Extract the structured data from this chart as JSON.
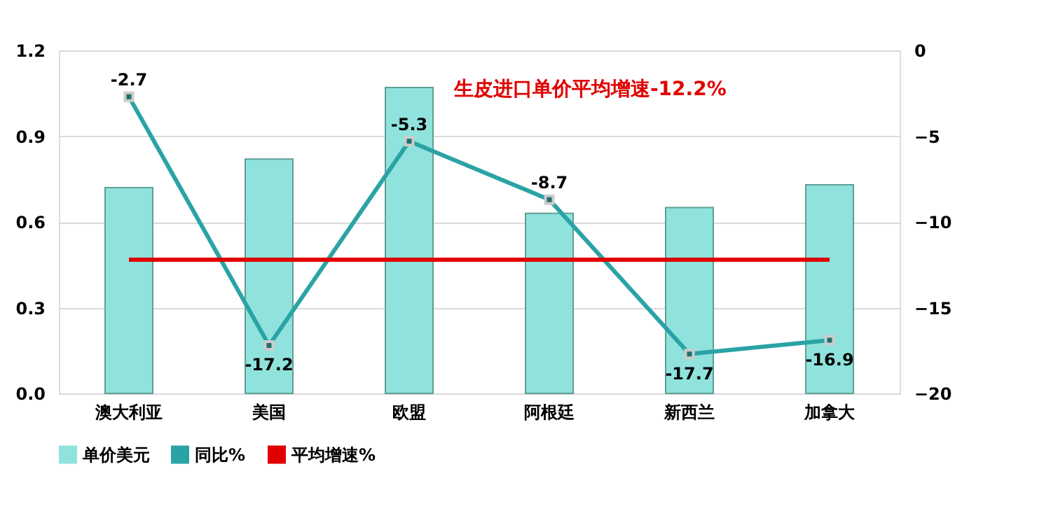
{
  "chart_data": {
    "type": "bar",
    "categories": [
      "澳大利亚",
      "美国",
      "欧盟",
      "阿根廷",
      "新西兰",
      "加拿大"
    ],
    "series": [
      {
        "name": "单价美元",
        "color": "#8fe3dc",
        "values": [
          0.72,
          0.82,
          1.07,
          0.63,
          0.65,
          0.73
        ]
      },
      {
        "name": "同比%",
        "type": "line",
        "axis": "y2",
        "color": "#2aa3a6",
        "marker": "square",
        "values": [
          -2.7,
          -17.2,
          -5.3,
          -8.7,
          -17.7,
          -16.9
        ],
        "value_labels": [
          "-2.7",
          "-17.2",
          "-5.3",
          "-8.7",
          "-17.7",
          "-16.9"
        ]
      },
      {
        "name": "平均增速%",
        "type": "line",
        "axis": "y2",
        "color": "#e00000",
        "values": [
          -12.2,
          -12.2,
          -12.2,
          -12.2,
          -12.2,
          -12.2
        ]
      }
    ],
    "ylim": [
      0,
      1.2
    ],
    "yticks": [
      {
        "value": 0,
        "label": "0.0"
      },
      0.3,
      0.6,
      0.9,
      1.2
    ],
    "y2lim": [
      -20,
      0
    ],
    "y2ticks": [
      -20,
      -15,
      -10,
      -5,
      0
    ],
    "annotations": [
      "生皮进口单价平均增速-12.2%"
    ],
    "grid": "y",
    "legend": "bottom"
  }
}
